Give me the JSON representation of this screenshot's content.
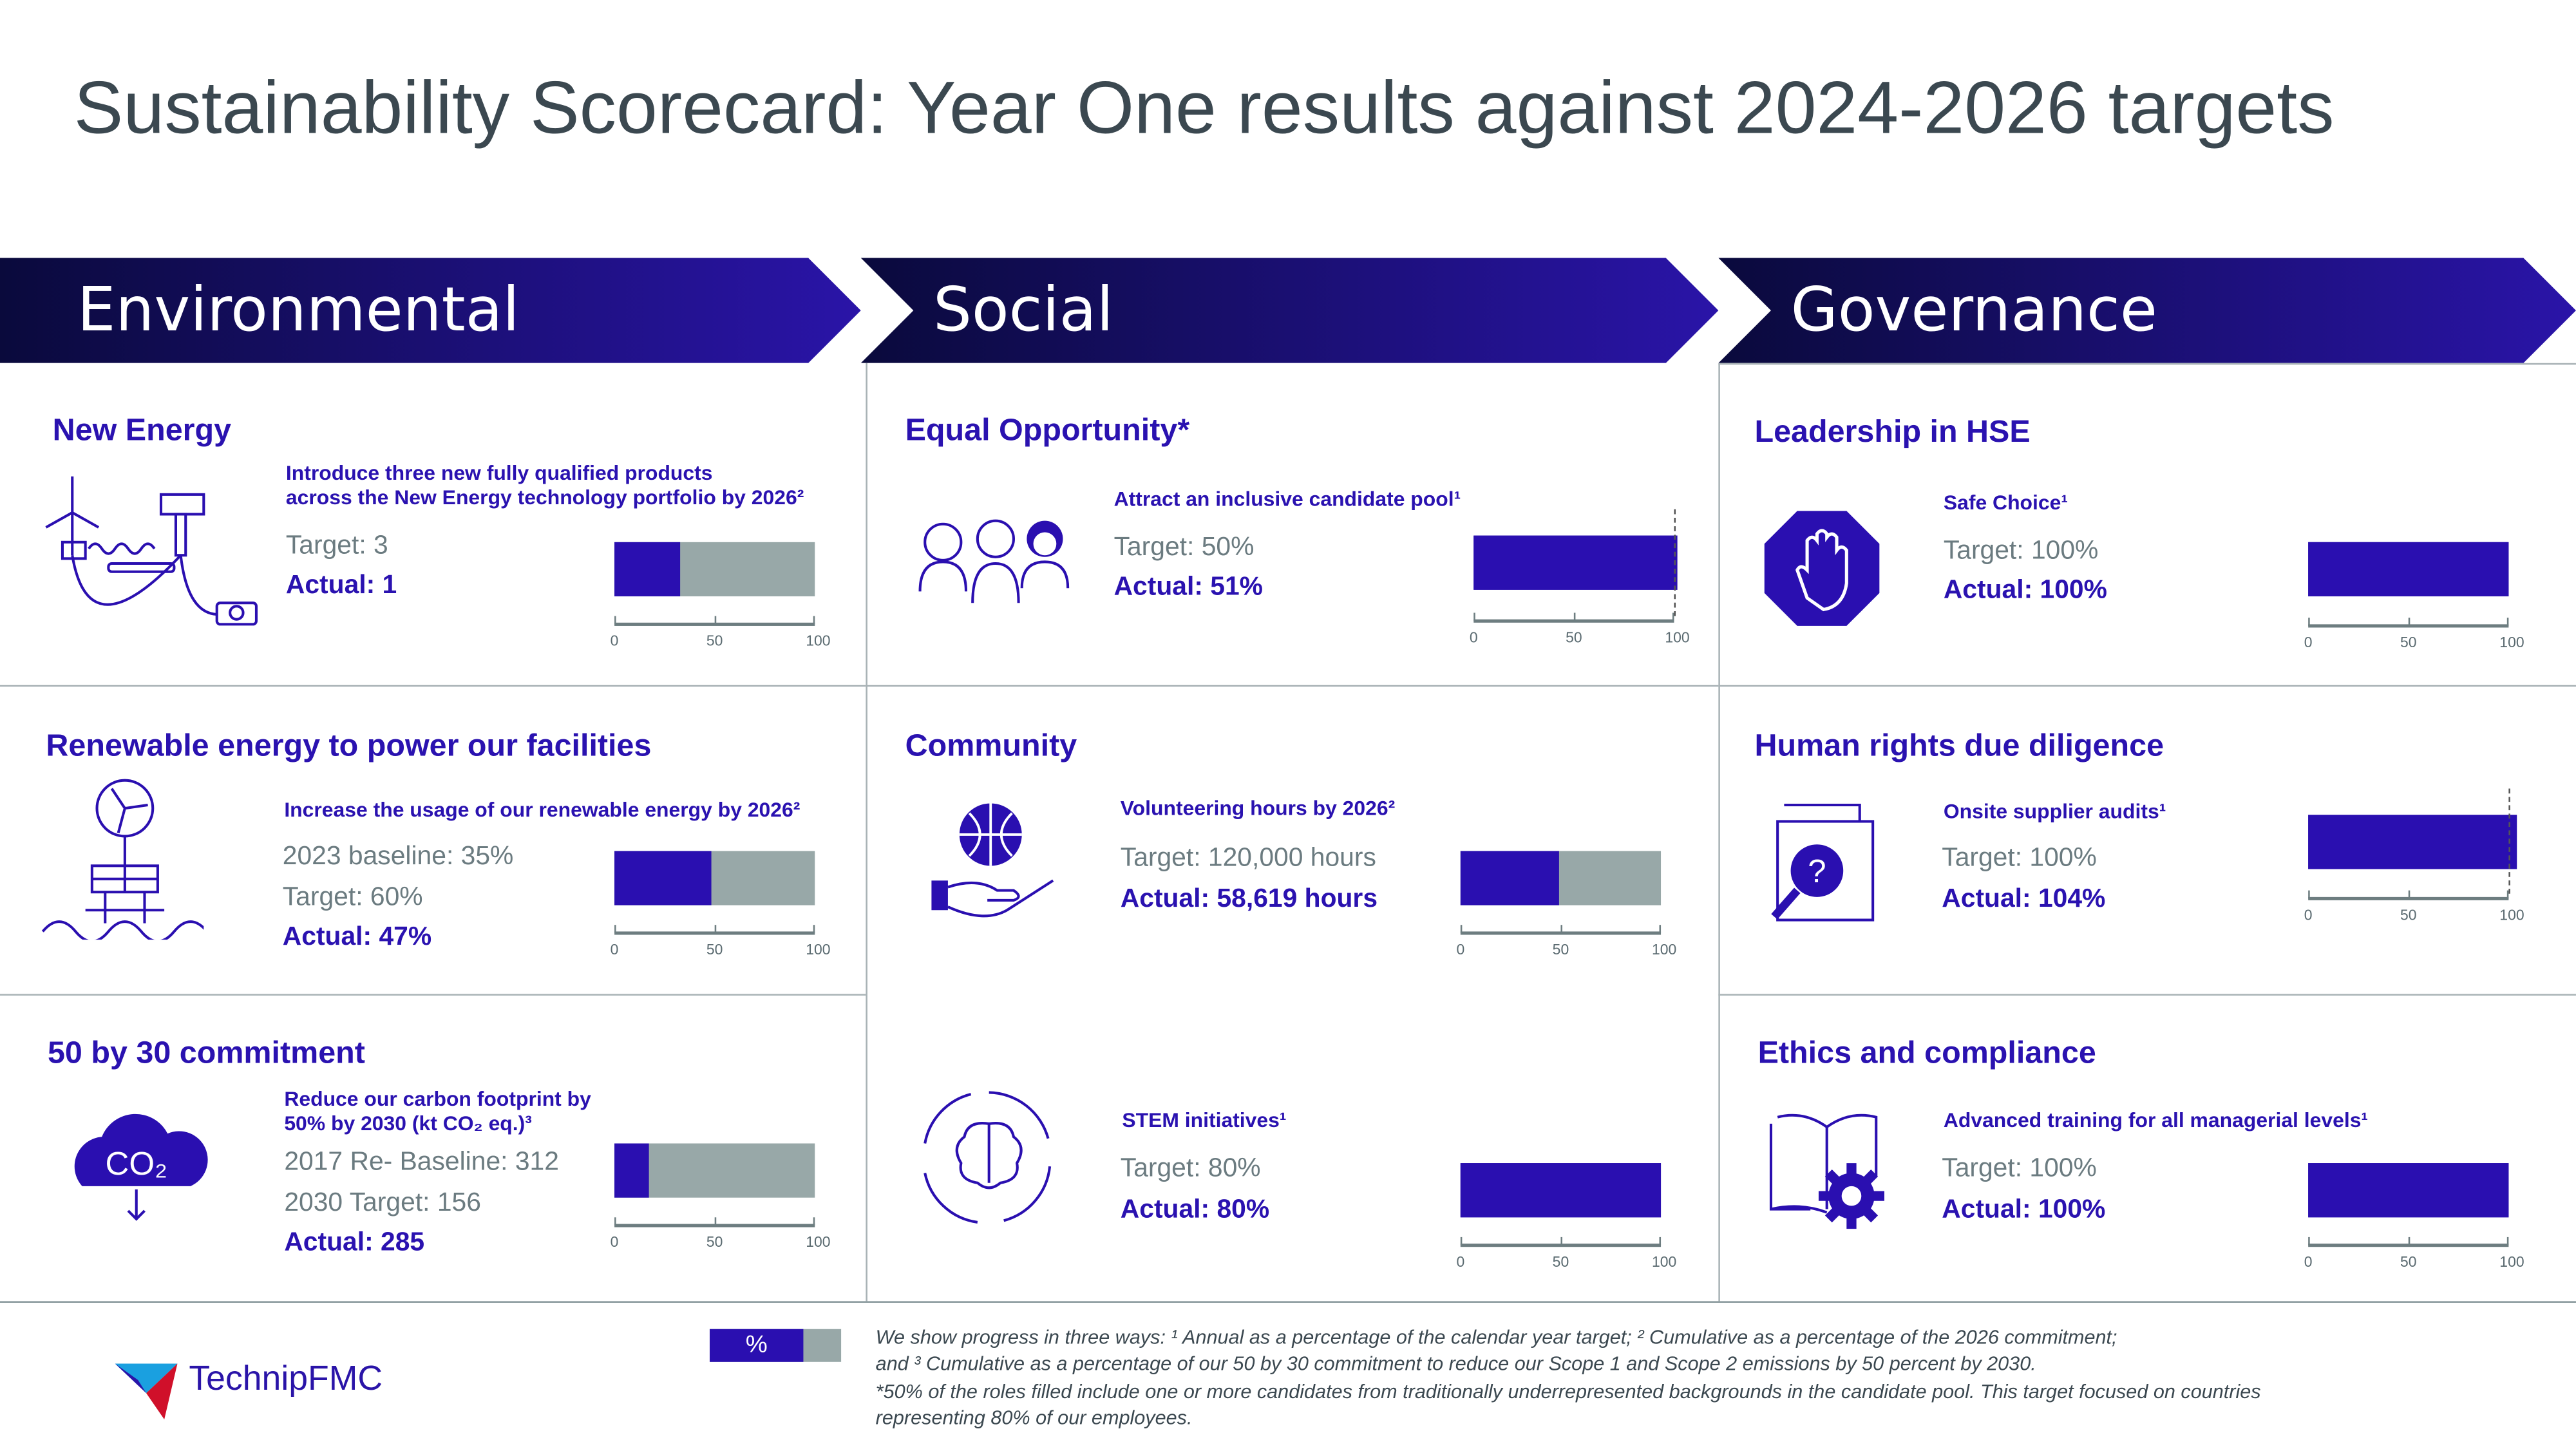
{
  "title": "Sustainability Scorecard: Year One results against 2024-2026 targets",
  "pillars": [
    "Environmental",
    "Social",
    "Governance"
  ],
  "colors": {
    "accent": "#2a0fb0",
    "bar_remaining": "#98a8a8",
    "banner_dark": "#0a0a3c",
    "banner_light": "#2a14a8",
    "title": "#3b4850"
  },
  "axis_ticks": [
    "0",
    "50",
    "100"
  ],
  "cards": [
    {
      "pillar": "Environmental",
      "title": "New Energy",
      "icon": "offshore-energy-icon",
      "subtitle": [
        "Introduce three new fully qualified products",
        "across the New Energy technology portfolio by 2026²"
      ],
      "lines": [
        "Target: 3"
      ],
      "actual": "Actual: 1",
      "progress_percent": 33
    },
    {
      "pillar": "Environmental",
      "title": "Renewable energy to power our facilities",
      "icon": "renewable-energy-icon",
      "subtitle": [
        "Increase the usage of our renewable energy by 2026²"
      ],
      "lines": [
        "2023 baseline: 35%",
        "Target: 60%"
      ],
      "actual": "Actual: 47%",
      "progress_percent": 48
    },
    {
      "pillar": "Environmental",
      "title": "50 by 30 commitment",
      "icon": "co2-cloud-icon",
      "icon_text": "CO₂",
      "subtitle": [
        "Reduce our carbon footprint by",
        "50% by 2030 (kt CO₂ eq.)³"
      ],
      "lines": [
        "2017 Re- Baseline: 312",
        "2030 Target: 156"
      ],
      "actual": "Actual: 285",
      "progress_percent": 17
    },
    {
      "pillar": "Social",
      "title": "Equal Opportunity*",
      "icon": "people-group-icon",
      "subtitle": [
        "Attract an inclusive candidate pool¹"
      ],
      "lines": [
        "Target: 50%"
      ],
      "actual": "Actual: 51%",
      "progress_percent": 102,
      "target_marker": true
    },
    {
      "pillar": "Social",
      "title": "Community",
      "icon": "globe-in-hand-icon",
      "subtitle": [
        "Volunteering hours by 2026²"
      ],
      "lines": [
        "Target: 120,000 hours"
      ],
      "actual": "Actual: 58,619 hours",
      "progress_percent": 49
    },
    {
      "pillar": "Social",
      "title": "",
      "icon": "brain-cycle-icon",
      "subtitle": [
        "STEM initiatives¹"
      ],
      "lines": [
        "Target: 80%"
      ],
      "actual": "Actual: 80%",
      "progress_percent": 100
    },
    {
      "pillar": "Governance",
      "title": "Leadership in HSE",
      "icon": "stop-hand-icon",
      "subtitle": [
        "Safe Choice¹"
      ],
      "lines": [
        "Target: 100%"
      ],
      "actual": "Actual: 100%",
      "progress_percent": 100
    },
    {
      "pillar": "Governance",
      "title": "Human rights due diligence",
      "icon": "document-search-icon",
      "subtitle": [
        "Onsite supplier audits¹"
      ],
      "lines": [
        "Target: 100%"
      ],
      "actual": "Actual: 104%",
      "progress_percent": 104,
      "target_marker": true
    },
    {
      "pillar": "Governance",
      "title": "Ethics and compliance",
      "icon": "book-gear-icon",
      "subtitle": [
        "Advanced training for all managerial levels¹"
      ],
      "lines": [
        "Target: 100%"
      ],
      "actual": "Actual: 100%",
      "progress_percent": 100
    }
  ],
  "legend": {
    "symbol": "%"
  },
  "footnotes": [
    "We show progress in three ways: ¹ Annual as a percentage of the calendar year target;  ² Cumulative as a percentage of the 2026 commitment;",
    "and ³ Cumulative as a percentage of our 50 by 30 commitment to reduce our Scope 1 and Scope 2 emissions by 50 percent by 2030.",
    "*50% of the roles filled include one or more candidates from traditionally underrepresented backgrounds in the candidate pool. This target focused on countries",
    "representing 80% of our employees."
  ],
  "logo": {
    "text": "TechnipFMC"
  }
}
